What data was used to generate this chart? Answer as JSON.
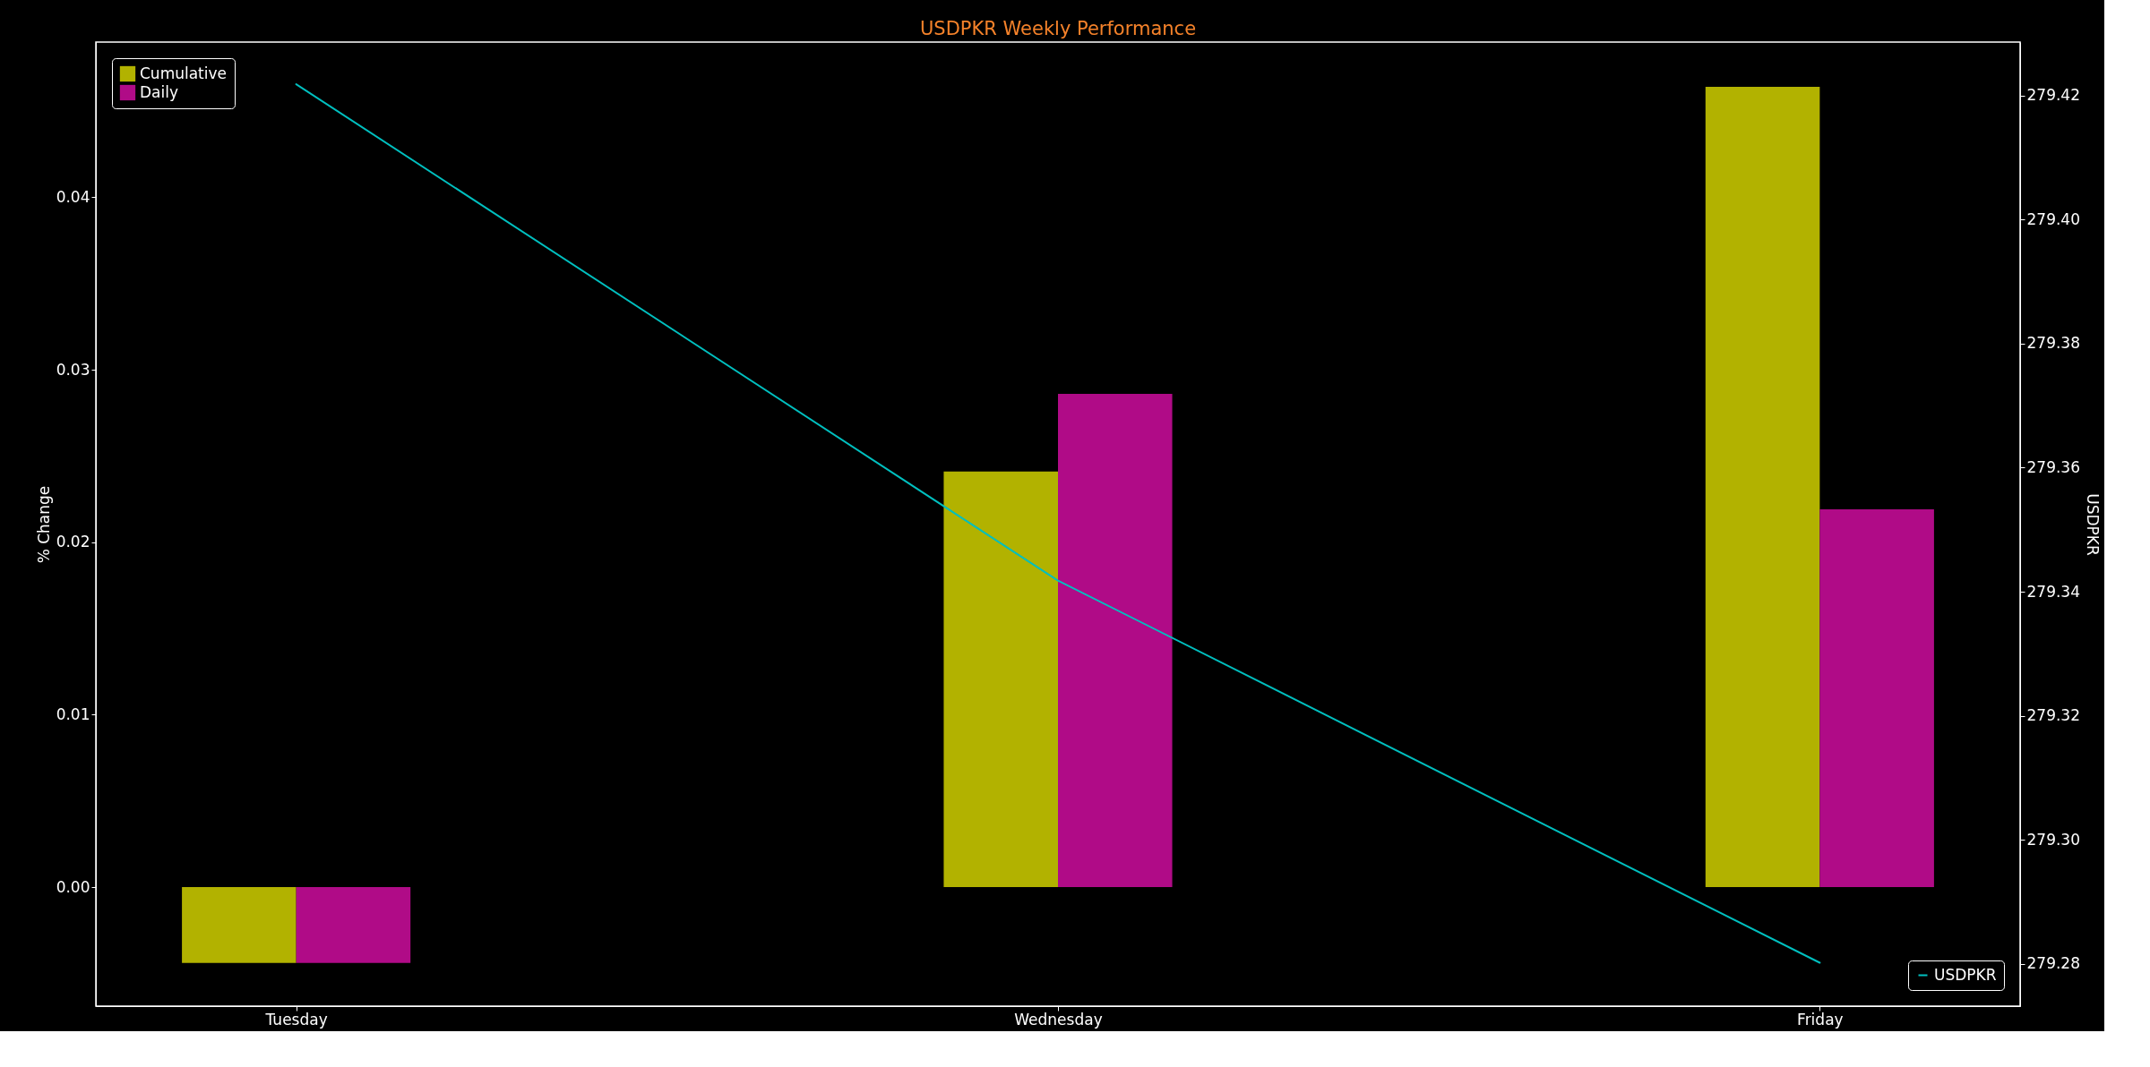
{
  "chart_data": {
    "type": "bar",
    "title": "USDPKR Weekly Performance",
    "categories": [
      "Tuesday",
      "Wednesday",
      "Friday"
    ],
    "ylabel": "% Change",
    "y2label": "USDPKR",
    "ylim": [
      -0.0069,
      0.049
    ],
    "yticks": [
      {
        "value": 0,
        "label": "0.00"
      },
      0.01,
      0.02,
      0.03,
      0.04
    ],
    "y2lim": [
      279.2732,
      279.4286
    ],
    "y2ticks": [
      279.28,
      {
        "value": 279.3,
        "label": "279.30"
      },
      279.32,
      279.34,
      279.36,
      279.38,
      {
        "value": 279.4,
        "label": "279.40"
      },
      279.42
    ],
    "grid": false,
    "legend": "top left",
    "series": [
      {
        "name": "Cumulative",
        "color": "#b2b200",
        "values": [
          -0.0044,
          0.0241,
          0.0464
        ]
      },
      {
        "name": "Daily",
        "color": "#b00b87",
        "values": [
          -0.0044,
          0.0286,
          0.0219
        ]
      },
      {
        "name": "USDPKR",
        "type": "line",
        "axis": "y2",
        "color": "#00bfbf",
        "values": [
          279.4218,
          279.3418,
          279.2802
        ]
      }
    ]
  }
}
